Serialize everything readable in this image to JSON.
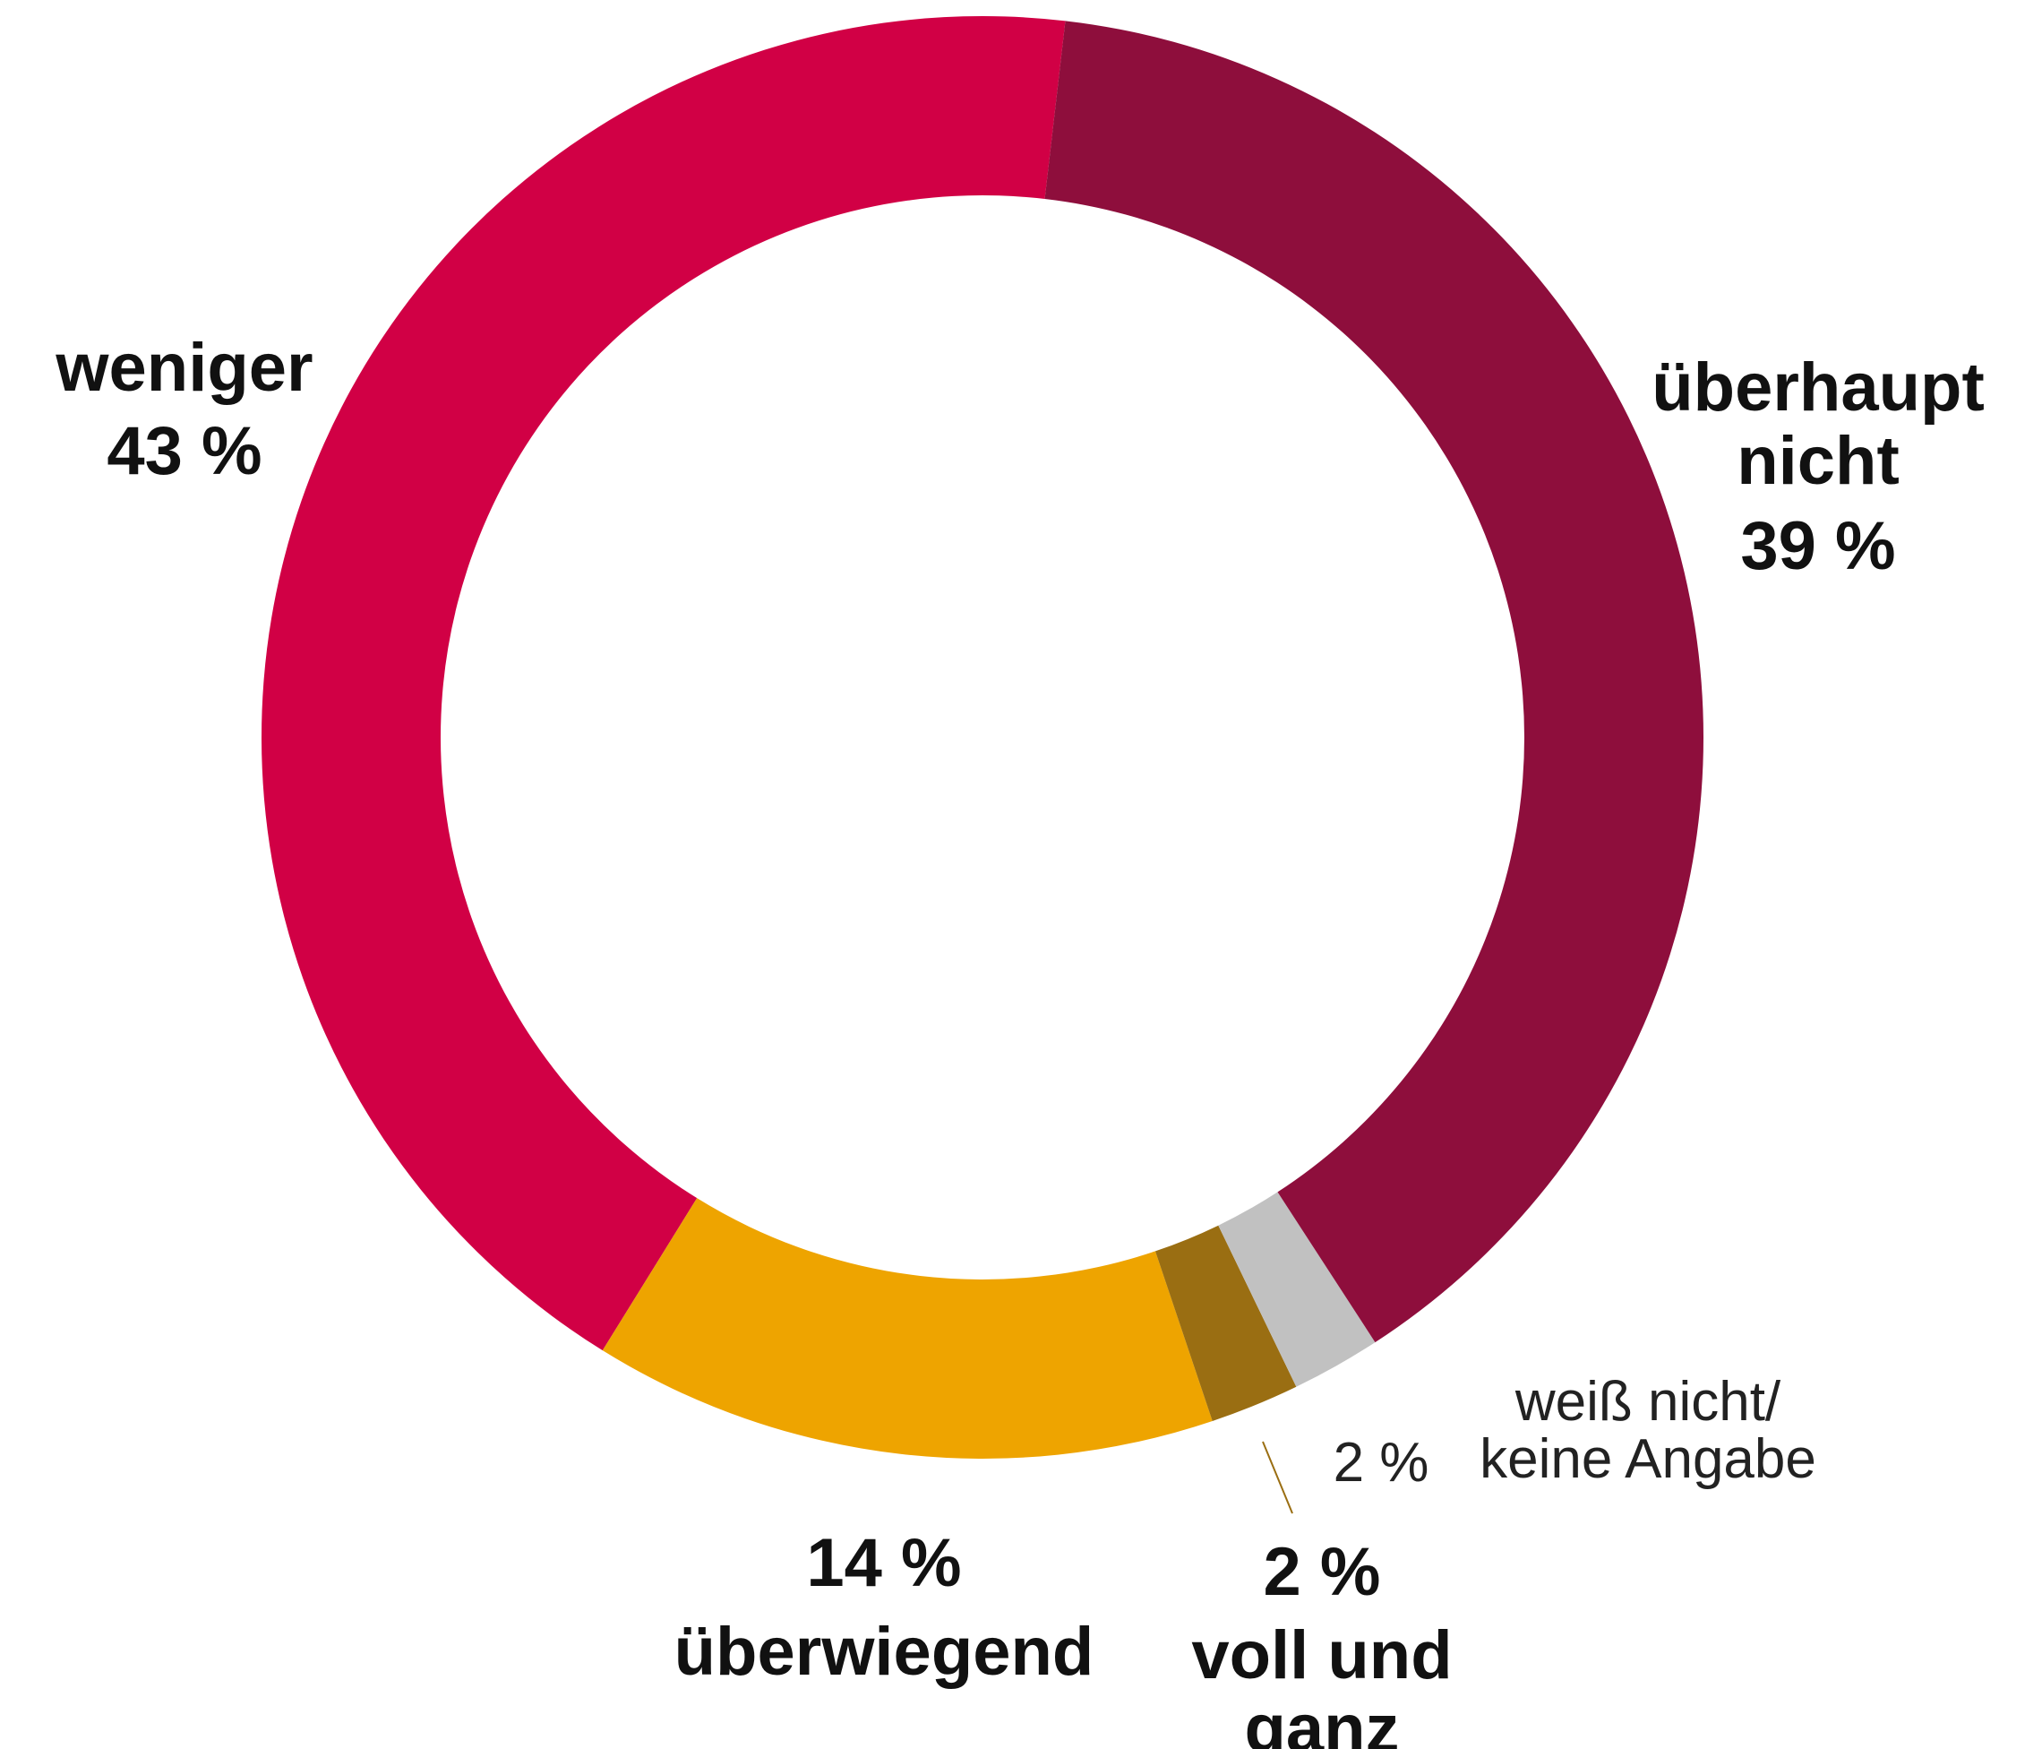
{
  "chart_data": {
    "type": "donut",
    "categories": [
      "überhaupt nicht",
      "weiß nicht/ keine Angabe",
      "voll und ganz",
      "überwiegend",
      "weniger"
    ],
    "values": [
      39,
      2,
      2,
      14,
      43
    ],
    "value_labels": [
      "39 %",
      "2 %",
      "2 %",
      "14 %",
      "43 %"
    ],
    "colors": [
      "#8e0e3c",
      "#c1c1c1",
      "#9a6e12",
      "#eea400",
      "#d10045"
    ]
  }
}
